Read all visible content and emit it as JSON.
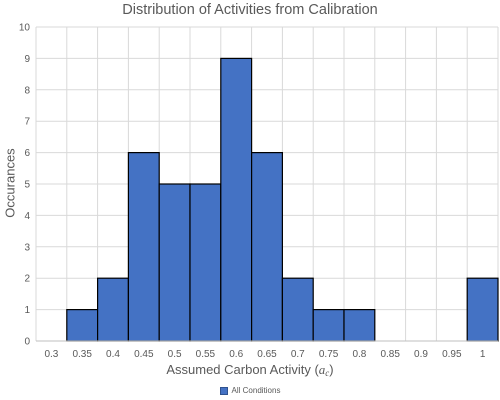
{
  "chart_data": {
    "type": "bar",
    "title": "Distribution of Activities from Calibration",
    "xlabel_text": "Assumed Carbon Activity (",
    "xlabel_symbol": "a",
    "xlabel_subscript": "c",
    "xlabel_close": ")",
    "ylabel": "Occurances",
    "categories": [
      "0.3",
      "0.35",
      "0.4",
      "0.45",
      "0.5",
      "0.55",
      "0.6",
      "0.65",
      "0.7",
      "0.75",
      "0.8",
      "0.85",
      "0.9",
      "0.95",
      "1"
    ],
    "series": [
      {
        "name": "All Conditions",
        "color": "#4472c4",
        "values": [
          0,
          1,
          2,
          6,
          5,
          5,
          9,
          6,
          2,
          1,
          1,
          0,
          0,
          0,
          2
        ]
      }
    ],
    "ylim": [
      0,
      10
    ],
    "yticks": [
      "0",
      "1",
      "2",
      "3",
      "4",
      "5",
      "6",
      "7",
      "8",
      "9",
      "10"
    ],
    "grid": true,
    "legend_position": "bottom"
  }
}
